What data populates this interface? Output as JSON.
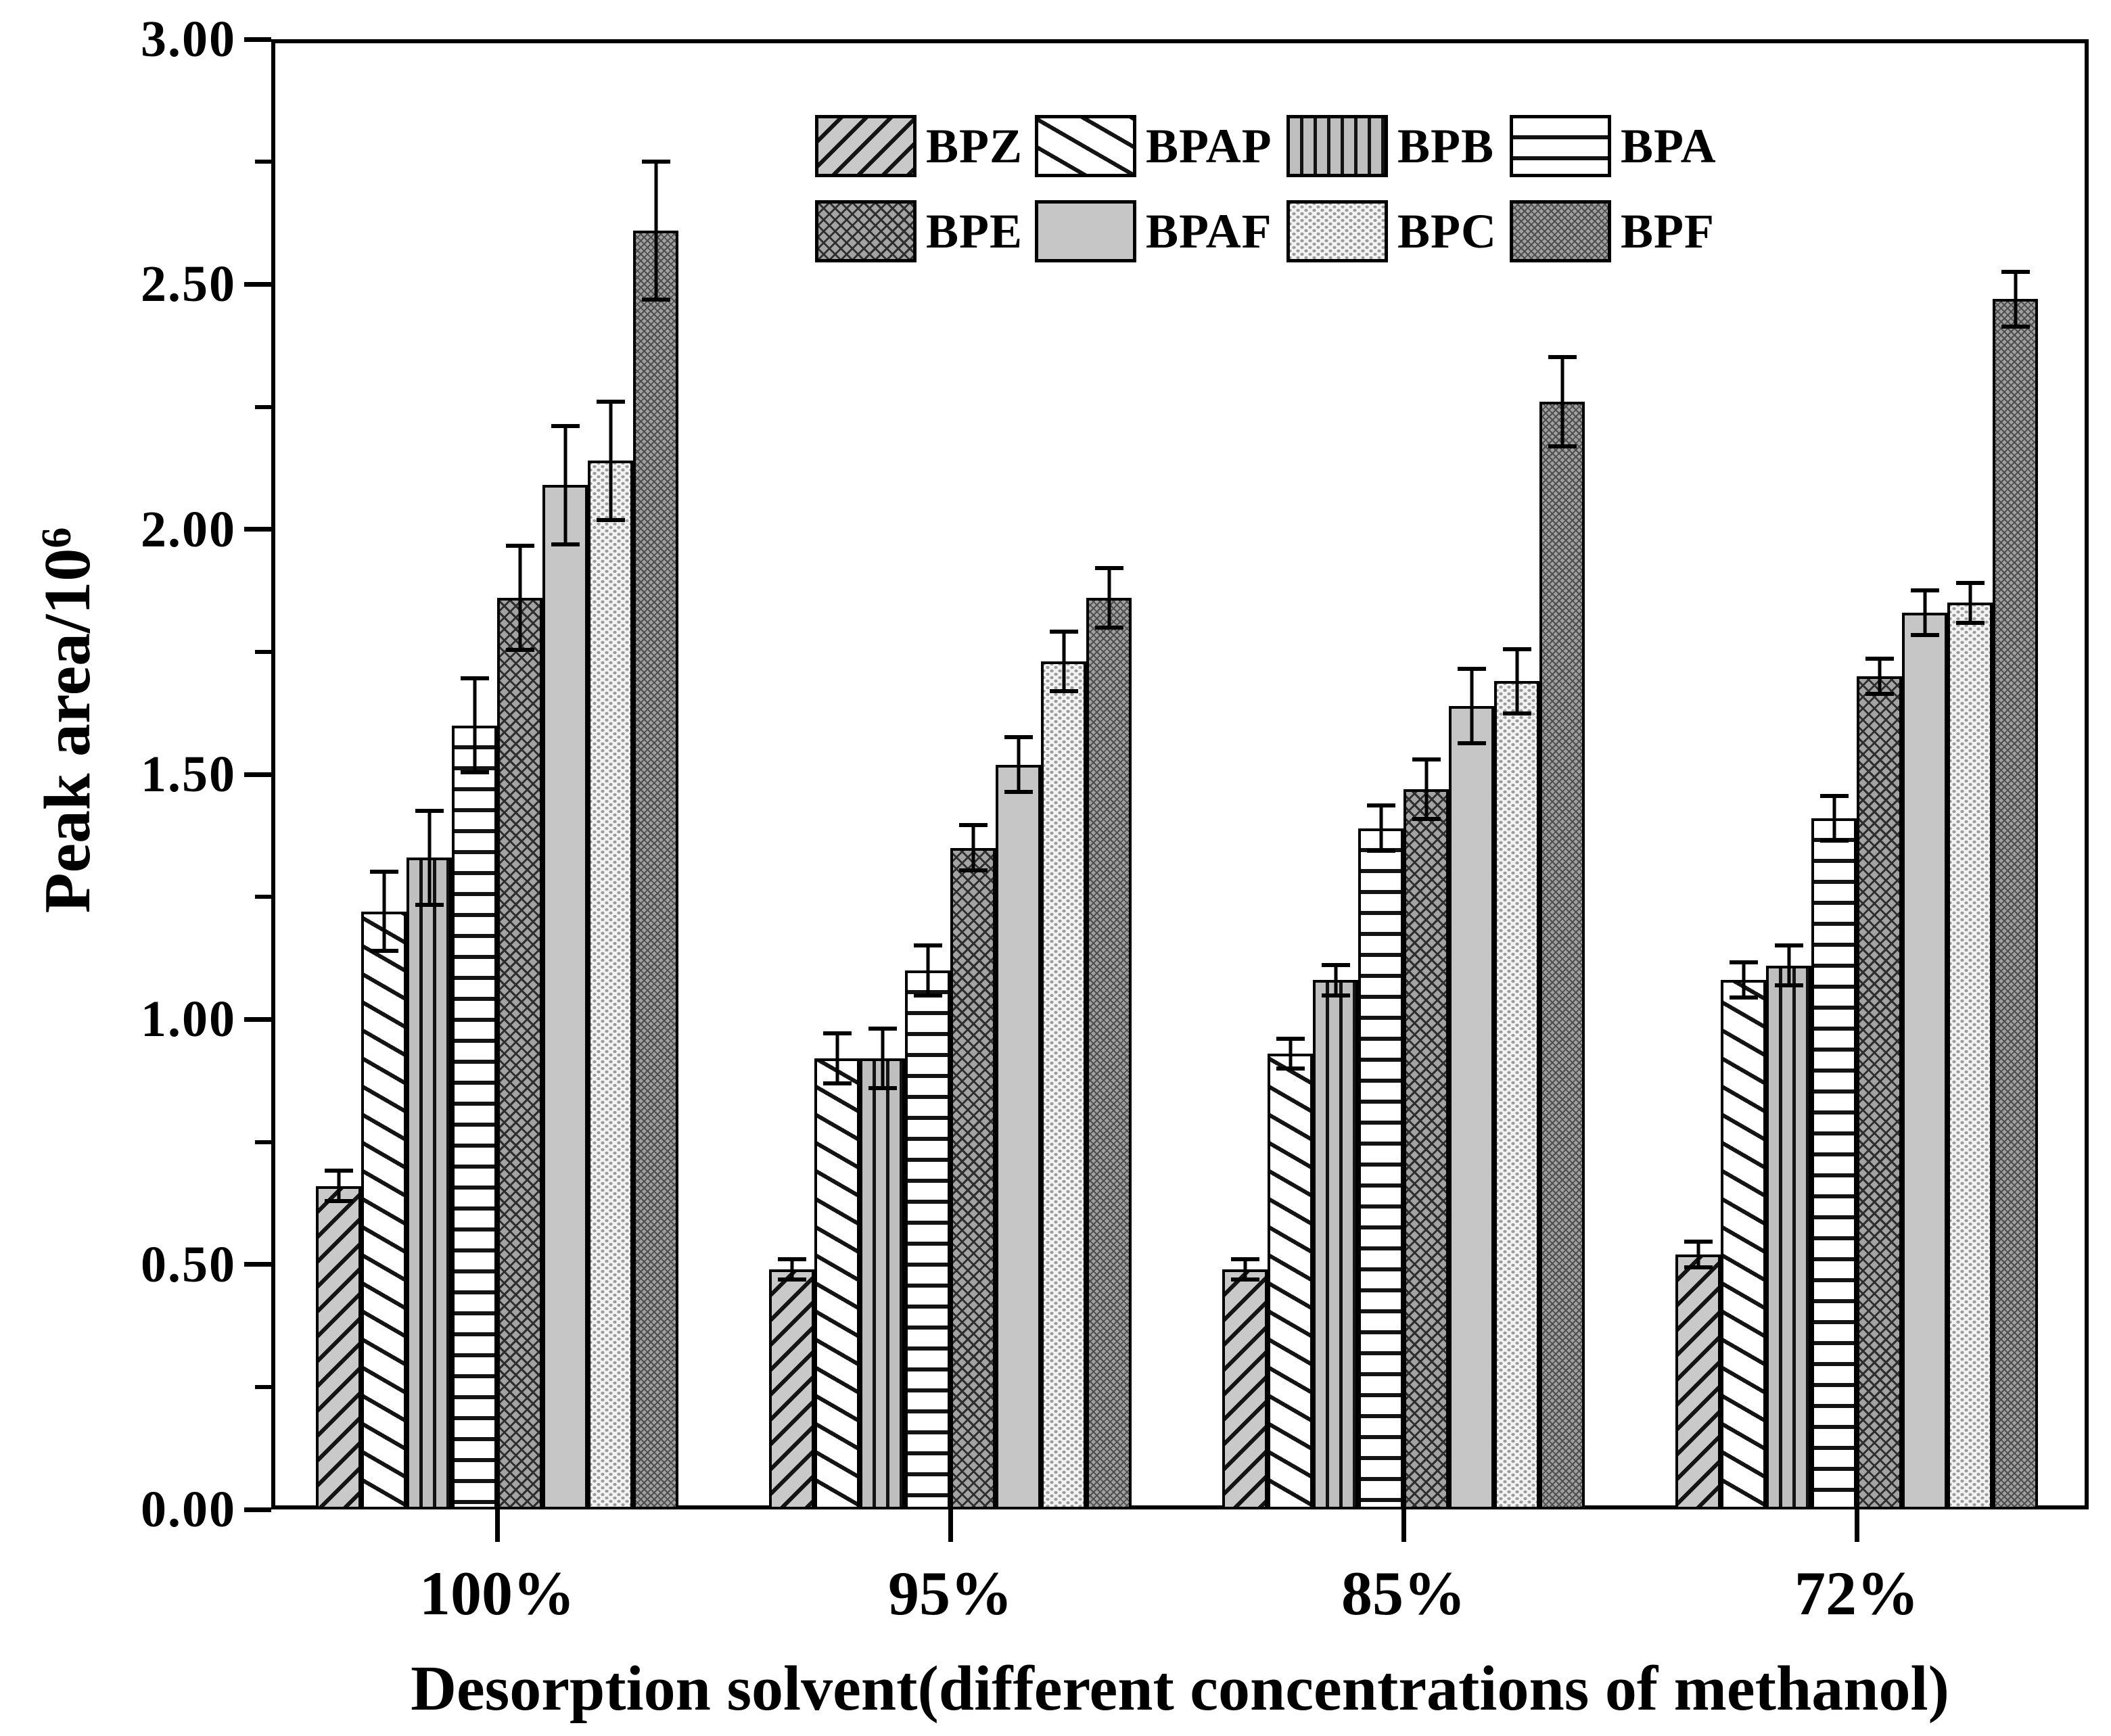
{
  "figure": {
    "background": "#ffffff",
    "frame_color": "#000000",
    "bar_border_color": "#000000"
  },
  "axes": {
    "y_title_main": "Peak area/10",
    "y_title_exponent": "6",
    "x_title": "Desorption solvent(different concentrations of methanol)",
    "y_tick_labels": [
      "0.00",
      "0.50",
      "1.00",
      "1.50",
      "2.00",
      "2.50",
      "3.00"
    ],
    "y_major_step": 0.5,
    "y_minor_step": 0.25
  },
  "chart_data": {
    "type": "bar",
    "title": "",
    "xlabel": "Desorption solvent(different concentrations of methanol)",
    "ylabel": "Peak area/10^6",
    "ylim": [
      0,
      3.0
    ],
    "grid": false,
    "legend_position": "upper-center-inside",
    "categories": [
      "100%",
      "95%",
      "85%",
      "72%"
    ],
    "series": [
      {
        "name": "BPZ",
        "pattern": "diag-fwd",
        "fill": "#c9c9c9",
        "values": [
          0.66,
          0.49,
          0.49,
          0.52
        ],
        "errors": [
          0.035,
          0.025,
          0.025,
          0.03
        ]
      },
      {
        "name": "BPAP",
        "pattern": "diag-back",
        "fill": "#ffffff",
        "values": [
          1.22,
          0.92,
          0.93,
          1.08
        ],
        "errors": [
          0.085,
          0.055,
          0.035,
          0.04
        ]
      },
      {
        "name": "BPB",
        "pattern": "vertical",
        "fill": "#bfbfbf",
        "values": [
          1.33,
          0.92,
          1.08,
          1.11
        ],
        "errors": [
          0.1,
          0.065,
          0.035,
          0.045
        ]
      },
      {
        "name": "BPA",
        "pattern": "horizontal",
        "fill": "#ffffff",
        "values": [
          1.6,
          1.1,
          1.39,
          1.41
        ],
        "errors": [
          0.1,
          0.055,
          0.05,
          0.05
        ]
      },
      {
        "name": "BPE",
        "pattern": "crosshatch",
        "fill": "#a3a3a3",
        "values": [
          1.86,
          1.35,
          1.47,
          1.7
        ],
        "errors": [
          0.11,
          0.05,
          0.065,
          0.04
        ]
      },
      {
        "name": "BPAF",
        "pattern": "solid",
        "fill": "#c6c6c6",
        "values": [
          2.09,
          1.52,
          1.64,
          1.83
        ],
        "errors": [
          0.125,
          0.06,
          0.08,
          0.05
        ]
      },
      {
        "name": "BPC",
        "pattern": "dots",
        "fill": "#f3f3f3",
        "values": [
          2.14,
          1.73,
          1.69,
          1.85
        ],
        "errors": [
          0.125,
          0.065,
          0.07,
          0.045
        ]
      },
      {
        "name": "BPF",
        "pattern": "fine-cross",
        "fill": "#a0a0a0",
        "values": [
          2.61,
          1.86,
          2.26,
          2.47
        ],
        "errors": [
          0.145,
          0.065,
          0.095,
          0.06
        ]
      }
    ],
    "legend_rows": [
      [
        "BPZ",
        "BPAP",
        "BPB",
        "BPA"
      ],
      [
        "BPE",
        "BPAF",
        "BPC",
        "BPF"
      ]
    ]
  }
}
